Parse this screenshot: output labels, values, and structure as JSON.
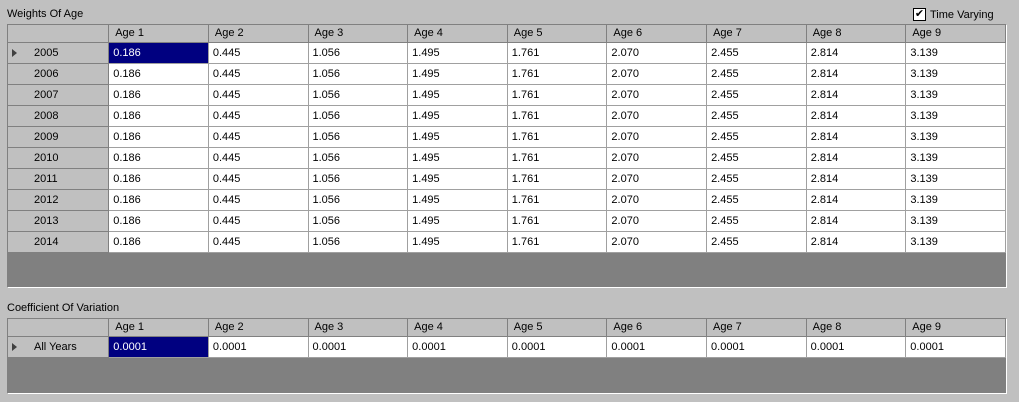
{
  "weights": {
    "title": "Weights Of Age",
    "time_varying_label": "Time Varying",
    "time_varying_checked": true,
    "check_glyph": "✔",
    "columns": [
      "Age 1",
      "Age 2",
      "Age 3",
      "Age 4",
      "Age 5",
      "Age 6",
      "Age 7",
      "Age 8",
      "Age 9"
    ],
    "rows": [
      {
        "label": "2005",
        "values": [
          "0.186",
          "0.445",
          "1.056",
          "1.495",
          "1.761",
          "2.070",
          "2.455",
          "2.814",
          "3.139"
        ]
      },
      {
        "label": "2006",
        "values": [
          "0.186",
          "0.445",
          "1.056",
          "1.495",
          "1.761",
          "2.070",
          "2.455",
          "2.814",
          "3.139"
        ]
      },
      {
        "label": "2007",
        "values": [
          "0.186",
          "0.445",
          "1.056",
          "1.495",
          "1.761",
          "2.070",
          "2.455",
          "2.814",
          "3.139"
        ]
      },
      {
        "label": "2008",
        "values": [
          "0.186",
          "0.445",
          "1.056",
          "1.495",
          "1.761",
          "2.070",
          "2.455",
          "2.814",
          "3.139"
        ]
      },
      {
        "label": "2009",
        "values": [
          "0.186",
          "0.445",
          "1.056",
          "1.495",
          "1.761",
          "2.070",
          "2.455",
          "2.814",
          "3.139"
        ]
      },
      {
        "label": "2010",
        "values": [
          "0.186",
          "0.445",
          "1.056",
          "1.495",
          "1.761",
          "2.070",
          "2.455",
          "2.814",
          "3.139"
        ]
      },
      {
        "label": "2011",
        "values": [
          "0.186",
          "0.445",
          "1.056",
          "1.495",
          "1.761",
          "2.070",
          "2.455",
          "2.814",
          "3.139"
        ]
      },
      {
        "label": "2012",
        "values": [
          "0.186",
          "0.445",
          "1.056",
          "1.495",
          "1.761",
          "2.070",
          "2.455",
          "2.814",
          "3.139"
        ]
      },
      {
        "label": "2013",
        "values": [
          "0.186",
          "0.445",
          "1.056",
          "1.495",
          "1.761",
          "2.070",
          "2.455",
          "2.814",
          "3.139"
        ]
      },
      {
        "label": "2014",
        "values": [
          "0.186",
          "0.445",
          "1.056",
          "1.495",
          "1.761",
          "2.070",
          "2.455",
          "2.814",
          "3.139"
        ]
      }
    ]
  },
  "cv": {
    "title": "Coefficient Of Variation",
    "columns": [
      "Age 1",
      "Age 2",
      "Age 3",
      "Age 4",
      "Age 5",
      "Age 6",
      "Age 7",
      "Age 8",
      "Age 9"
    ],
    "rows": [
      {
        "label": "All Years",
        "values": [
          "0.0001",
          "0.0001",
          "0.0001",
          "0.0001",
          "0.0001",
          "0.0001",
          "0.0001",
          "0.0001",
          "0.0001"
        ]
      }
    ]
  },
  "colors": {
    "background": "#c0c0c0",
    "grid_empty": "#808080",
    "selection": "#000080"
  }
}
